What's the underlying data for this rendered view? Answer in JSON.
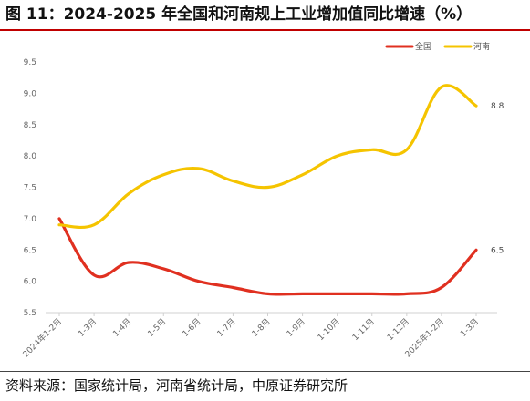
{
  "header": {
    "title": "图 11：2024-2025 年全国和河南规上工业增加值同比增速（%）"
  },
  "footer": {
    "source": "资料来源：国家统计局，河南省统计局，中原证券研究所"
  },
  "chart_data": {
    "type": "line",
    "title": "",
    "xlabel": "",
    "ylabel": "",
    "ylim": [
      5.5,
      9.5
    ],
    "y_ticks": [
      "5.5",
      "6.0",
      "6.5",
      "7.0",
      "7.5",
      "8.0",
      "8.5",
      "9.0",
      "9.5"
    ],
    "x": [
      "2024年1-2月",
      "1-3月",
      "1-4月",
      "1-5月",
      "1-6月",
      "1-7月",
      "1-8月",
      "1-9月",
      "1-10月",
      "1-11月",
      "1-12月",
      "2025年1-2月",
      "1-3月"
    ],
    "series": [
      {
        "name": "全国",
        "color": "#e03020",
        "values": [
          7.0,
          6.1,
          6.3,
          6.2,
          6.0,
          5.9,
          5.8,
          5.8,
          5.8,
          5.8,
          5.8,
          5.9,
          6.5
        ],
        "end_label": "6.5"
      },
      {
        "name": "河南",
        "color": "#f5c400",
        "values": [
          6.9,
          6.9,
          7.4,
          7.7,
          7.8,
          7.6,
          7.5,
          7.7,
          8.0,
          8.1,
          8.1,
          9.1,
          8.8
        ],
        "end_label": "8.8"
      }
    ],
    "legend_position": "top-right",
    "grid": false
  }
}
